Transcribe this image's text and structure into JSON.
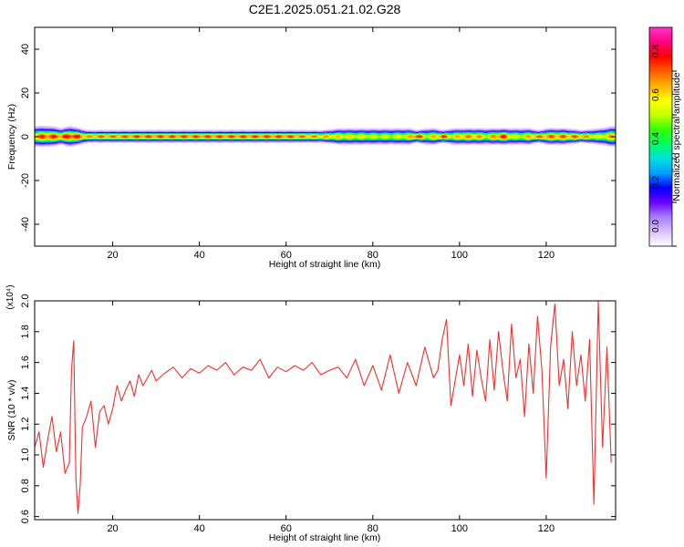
{
  "figure_title": "C2E1.2025.051.21.02.G28",
  "chart_data": [
    {
      "type": "heatmap",
      "title": "C2E1.2025.051.21.02.G28",
      "xlabel": "Height of straight line (km)",
      "ylabel": "Frequency (Hz)",
      "xlim": [
        2,
        136
      ],
      "ylim": [
        -50,
        50
      ],
      "xticks": [
        20,
        40,
        60,
        80,
        100,
        120
      ],
      "yticks": [
        -40,
        -20,
        0,
        20,
        40
      ],
      "grid": false,
      "colorbar": {
        "label": "Normalized spectral amplitude",
        "range": [
          0,
          1
        ],
        "ticks": [
          "0.0",
          "0.2",
          "0.4",
          "0.6",
          "0.8"
        ],
        "colors": [
          "#ffffff",
          "#d9c2ff",
          "#a97bff",
          "#6a00ff",
          "#0000ff",
          "#00a0ff",
          "#00e0e0",
          "#00ff60",
          "#30ff00",
          "#c8ff00",
          "#ffff00",
          "#ffb000",
          "#ff5a00",
          "#ff0000",
          "#ff0080",
          "#ff33cc"
        ]
      },
      "ridge_center_hz": 0,
      "ridge_profile": {
        "x": [
          2,
          5,
          8,
          10,
          12,
          14,
          16,
          20,
          25,
          30,
          40,
          50,
          60,
          68,
          72,
          76,
          80,
          84,
          88,
          90,
          92,
          94,
          96,
          98,
          100,
          102,
          104,
          106,
          108,
          110,
          112,
          114,
          116,
          118,
          120,
          124,
          128,
          132,
          135
        ],
        "halfwidth_hz": [
          5,
          5,
          4,
          5,
          4,
          3,
          3,
          3,
          3,
          3,
          3,
          3,
          3,
          3,
          4,
          4,
          4,
          4,
          4,
          3,
          4,
          4,
          3,
          4,
          4,
          4,
          4,
          4,
          4,
          4,
          4,
          4,
          4,
          3,
          4,
          4,
          3,
          4,
          5
        ],
        "peak": [
          0.85,
          0.9,
          0.88,
          0.95,
          0.9,
          0.8,
          0.85,
          0.85,
          0.88,
          0.88,
          0.88,
          0.88,
          0.88,
          0.8,
          0.75,
          0.72,
          0.7,
          0.68,
          0.75,
          0.95,
          0.7,
          0.78,
          0.92,
          0.7,
          0.82,
          0.82,
          0.82,
          0.7,
          0.85,
          0.92,
          0.72,
          0.7,
          0.8,
          0.85,
          0.85,
          0.85,
          0.85,
          0.7,
          0.8
        ]
      }
    },
    {
      "type": "line",
      "xlabel": "Height of straight line (km)",
      "ylabel": "SNR (10 * v/v)",
      "y_multiplier": "(x10⁴)",
      "xlim": [
        2,
        136
      ],
      "ylim": [
        0.58,
        2.0
      ],
      "xticks": [
        20,
        40,
        60,
        80,
        100,
        120
      ],
      "yticks": [
        "0.6",
        "0.8",
        "1.0",
        "1.2",
        "1.4",
        "1.6",
        "1.8",
        "2.0"
      ],
      "grid": false,
      "line_color": "#ff2a2a",
      "series": [
        {
          "x": [
            2,
            3,
            4,
            5,
            6,
            7,
            8,
            9,
            10,
            10.5,
            11,
            11.5,
            12,
            12.5,
            13,
            14,
            15,
            16,
            17,
            18,
            19,
            20,
            21,
            22,
            23,
            24,
            25,
            26,
            27,
            28,
            29,
            30,
            32,
            34,
            36,
            38,
            40,
            42,
            44,
            46,
            48,
            50,
            52,
            54,
            56,
            58,
            60,
            62,
            64,
            66,
            68,
            70,
            72,
            74,
            76,
            78,
            80,
            82,
            84,
            86,
            88,
            90,
            92,
            94,
            95,
            96,
            97,
            98,
            100,
            101,
            102,
            103,
            104,
            105,
            106,
            107,
            108,
            109,
            110,
            111,
            112,
            113,
            114,
            115,
            116,
            117,
            118,
            119,
            120,
            121,
            122,
            123,
            124,
            125,
            126,
            127,
            128,
            129,
            130,
            131,
            132,
            133,
            134,
            135
          ],
          "y": [
            1.05,
            1.15,
            0.92,
            1.1,
            1.25,
            1.02,
            1.15,
            0.88,
            0.95,
            1.55,
            1.74,
            0.85,
            0.62,
            0.8,
            1.18,
            1.25,
            1.35,
            1.05,
            1.28,
            1.32,
            1.2,
            1.3,
            1.45,
            1.35,
            1.42,
            1.48,
            1.38,
            1.52,
            1.45,
            1.5,
            1.55,
            1.48,
            1.53,
            1.57,
            1.5,
            1.56,
            1.53,
            1.58,
            1.55,
            1.6,
            1.52,
            1.57,
            1.55,
            1.62,
            1.5,
            1.57,
            1.54,
            1.58,
            1.55,
            1.6,
            1.52,
            1.55,
            1.57,
            1.5,
            1.62,
            1.45,
            1.58,
            1.42,
            1.65,
            1.4,
            1.6,
            1.45,
            1.7,
            1.5,
            1.55,
            1.75,
            1.88,
            1.32,
            1.65,
            1.45,
            1.72,
            1.38,
            1.68,
            1.5,
            1.35,
            1.75,
            1.42,
            1.8,
            1.55,
            1.35,
            1.85,
            1.5,
            1.62,
            1.25,
            1.72,
            1.4,
            1.9,
            1.55,
            0.85,
            1.7,
            1.98,
            1.45,
            1.62,
            1.3,
            1.8,
            1.45,
            1.65,
            1.35,
            1.75,
            0.68,
            2.0,
            1.05,
            1.7,
            0.95
          ]
        }
      ]
    }
  ]
}
